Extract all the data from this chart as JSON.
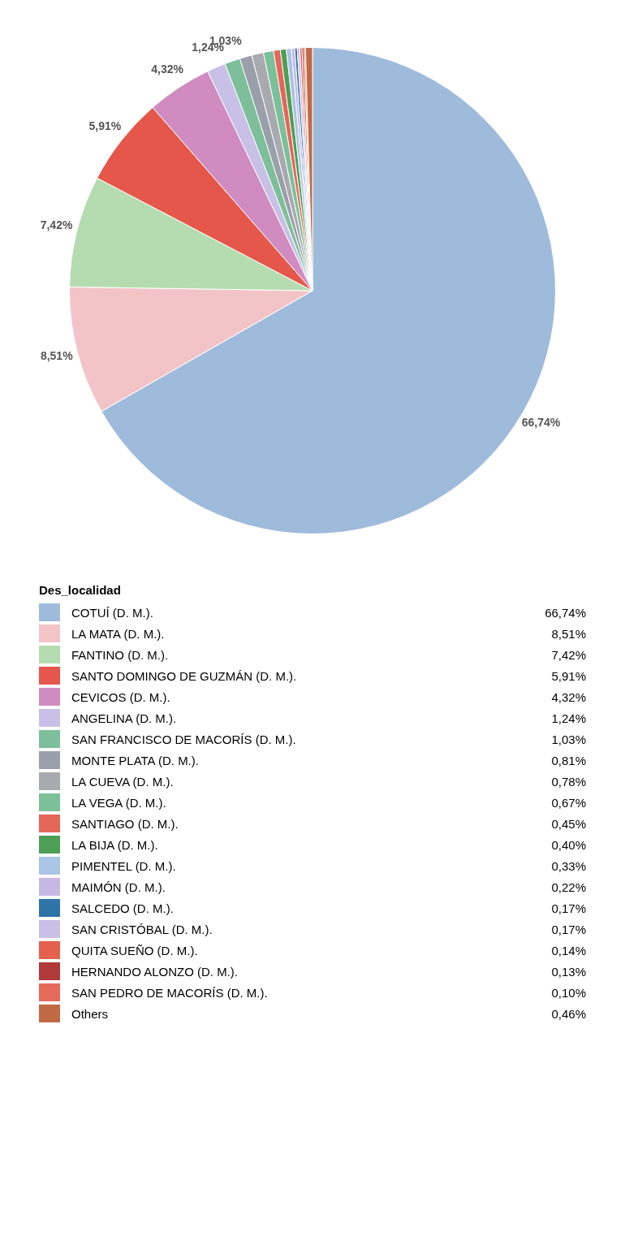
{
  "chart_data": {
    "type": "pie",
    "legend_title": "Des_localidad",
    "legend": "bottom",
    "categories": [
      "COTUÍ (D. M.).",
      "LA MATA (D. M.).",
      "FANTINO (D. M.).",
      "SANTO DOMINGO DE GUZMÁN (D. M.).",
      "CEVICOS (D. M.).",
      "ANGELINA (D. M.).",
      "SAN FRANCISCO DE MACORÍS (D. M.).",
      "MONTE PLATA (D. M.).",
      "LA CUEVA (D. M.).",
      "LA VEGA (D. M.).",
      "SANTIAGO (D. M.).",
      "LA BIJA (D. M.).",
      "PIMENTEL (D. M.).",
      "MAIMÓN (D. M.).",
      "SALCEDO (D. M.).",
      "SAN CRISTÓBAL (D. M.).",
      "QUITA SUEÑO (D. M.).",
      "HERNANDO ALONZO (D. M.).",
      "SAN PEDRO DE MACORÍS (D. M.).",
      "Others"
    ],
    "values": [
      66.74,
      8.51,
      7.42,
      5.91,
      4.32,
      1.24,
      1.03,
      0.81,
      0.78,
      0.67,
      0.45,
      0.4,
      0.33,
      0.22,
      0.17,
      0.17,
      0.14,
      0.13,
      0.1,
      0.46
    ],
    "value_labels": [
      "66,74%",
      "8,51%",
      "7,42%",
      "5,91%",
      "4,32%",
      "1,24%",
      "1,03%",
      "0,81%",
      "0,78%",
      "0,67%",
      "0,45%",
      "0,40%",
      "0,33%",
      "0,22%",
      "0,17%",
      "0,17%",
      "0,14%",
      "0,13%",
      "0,10%",
      "0,46%"
    ],
    "colors": [
      "#9fbbdc",
      "#f2c4c8",
      "#b5dcb0",
      "#e4574a",
      "#d08bc0",
      "#c8c0e6",
      "#7dbf9a",
      "#9aa0aa",
      "#a9a9b0",
      "#7cc09a",
      "#e5675a",
      "#4f9e55",
      "#a9c4e4",
      "#c6b8e3",
      "#2e74a8",
      "#c9c0e8",
      "#e4614d",
      "#b03a3a",
      "#e46a5a",
      "#c06a45"
    ]
  }
}
